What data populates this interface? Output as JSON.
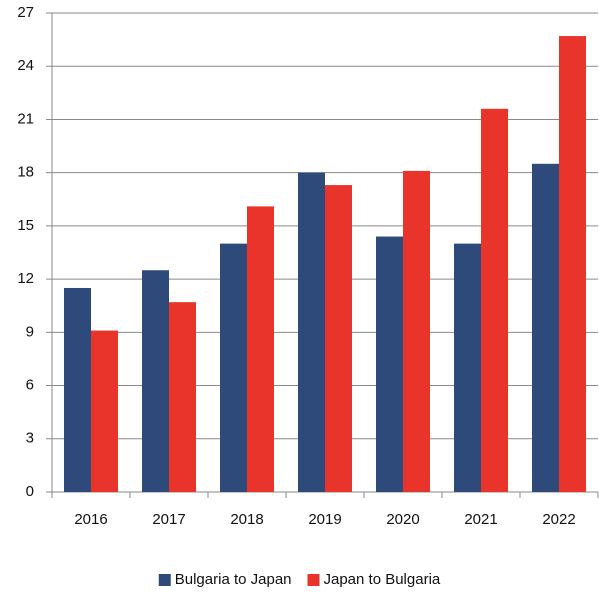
{
  "chart_data": {
    "type": "bar",
    "categories": [
      "2016",
      "2017",
      "2018",
      "2019",
      "2020",
      "2021",
      "2022"
    ],
    "series": [
      {
        "name": "Bulgaria to Japan",
        "color": "#2e4a7a",
        "values": [
          11.5,
          12.5,
          14.0,
          18.0,
          14.4,
          14.0,
          18.5
        ]
      },
      {
        "name": "Japan to Bulgaria",
        "color": "#e8342a",
        "values": [
          9.1,
          10.7,
          16.1,
          17.3,
          18.1,
          21.6,
          25.7
        ]
      }
    ],
    "ylim": [
      0,
      27
    ],
    "yticks": [
      0,
      3,
      6,
      9,
      12,
      15,
      18,
      21,
      24,
      27
    ],
    "grid": true,
    "legend": "bottom"
  }
}
